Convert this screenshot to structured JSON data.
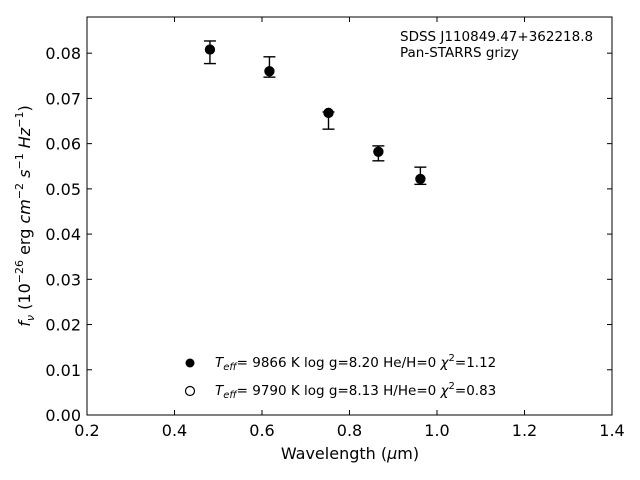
{
  "chart_data": {
    "type": "scatter",
    "xlabel": "Wavelength (μm)",
    "ylabel": "f_ν (10^-26 erg cm^-2 s^-1 Hz^-1)",
    "xlim": [
      0.2,
      1.4
    ],
    "ylim": [
      0.0,
      0.088
    ],
    "xticks": [
      0.2,
      0.4,
      0.6,
      0.8,
      1.0,
      1.2,
      1.4
    ],
    "xtick_labels": [
      "0.2",
      "0.4",
      "0.6",
      "0.8",
      "1.0",
      "1.2",
      "1.4"
    ],
    "yticks": [
      0.0,
      0.01,
      0.02,
      0.03,
      0.04,
      0.05,
      0.06,
      0.07,
      0.08
    ],
    "ytick_labels": [
      "0.00",
      "0.01",
      "0.02",
      "0.03",
      "0.04",
      "0.05",
      "0.06",
      "0.07",
      "0.08"
    ],
    "grid": false,
    "annotation": {
      "line1": "SDSS J110849.47+362218.8",
      "line2": "Pan-STARRS grizy"
    },
    "observed": {
      "x": [
        0.481,
        0.617,
        0.752,
        0.866,
        0.962
      ],
      "y": [
        0.0805,
        0.0757,
        0.0665,
        0.058,
        0.052
      ],
      "yerr_low": [
        0.0028,
        0.001,
        0.0033,
        0.0018,
        0.001
      ],
      "yerr_high": [
        0.0022,
        0.0035,
        0.0005,
        0.0015,
        0.0028
      ]
    },
    "models": [
      {
        "marker": "filled",
        "x": [
          0.481,
          0.617,
          0.752,
          0.866,
          0.962
        ],
        "y": [
          0.0808,
          0.076,
          0.0668,
          0.0582,
          0.0522
        ],
        "label": {
          "teff": "9866 K",
          "logg": "log g=8.20",
          "comp": "He/H=0",
          "chi2": "1.12"
        }
      },
      {
        "marker": "open",
        "x": [
          0.481,
          0.617,
          0.752,
          0.866,
          0.962
        ],
        "y": [
          0.0808,
          0.076,
          0.0668,
          0.0582,
          0.0522
        ],
        "label": {
          "teff": "9790 K",
          "logg": "log g=8.13",
          "comp": "H/He=0",
          "chi2": "0.83"
        }
      }
    ],
    "legend_placement": "lower-center",
    "colors": {
      "marker": "#000000",
      "axes": "#000000",
      "background": "#ffffff"
    }
  }
}
